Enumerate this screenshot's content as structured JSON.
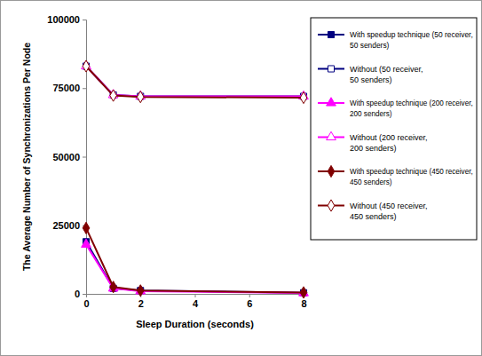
{
  "chart_data": {
    "type": "line",
    "x_label": "Sleep Duration (seconds)",
    "y_label": "The Average Number of Synchronizations Per Node",
    "x": [
      0,
      1,
      2,
      8
    ],
    "xlim": [
      0,
      8
    ],
    "xticks": [
      0,
      2,
      4,
      6,
      8
    ],
    "ylim": [
      0,
      100000
    ],
    "yticks": [
      0,
      25000,
      50000,
      75000,
      100000
    ],
    "grid": false,
    "legend": "right",
    "series": [
      {
        "name": "With speedup technique (50 receiver, 50 senders)",
        "color": "#000080",
        "marker": "square",
        "values": [
          19000,
          2000,
          1200,
          400
        ]
      },
      {
        "name": "Without (50 receiver, 50 senders)",
        "color": "#000080",
        "marker": "square-open",
        "values": [
          83000,
          72500,
          72000,
          72000
        ]
      },
      {
        "name": "With speedup technique (200 receiver, 200 senders)",
        "color": "#ff00ff",
        "marker": "triangle",
        "values": [
          18000,
          2000,
          1000,
          300
        ]
      },
      {
        "name": "Without (200 receiver, 200 senders)",
        "color": "#ff00ff",
        "marker": "triangle-open",
        "values": [
          83000,
          72500,
          72000,
          72000
        ]
      },
      {
        "name": "With speedup technique (450 receiver, 450 senders)",
        "color": "#800000",
        "marker": "diamond",
        "values": [
          24000,
          2500,
          1200,
          500
        ]
      },
      {
        "name": "Without (450 receiver, 450 senders)",
        "color": "#800000",
        "marker": "diamond-open",
        "values": [
          83000,
          72300,
          71800,
          71500
        ]
      }
    ]
  }
}
